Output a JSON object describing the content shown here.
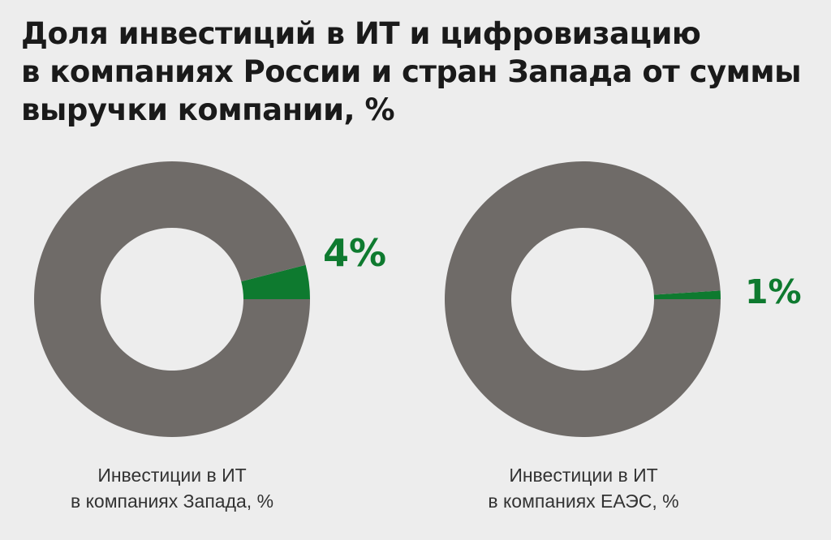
{
  "title": {
    "line1": "Доля инвестиций в ИТ и цифровизацию",
    "line2": "в компаниях России и стран Запада от суммы",
    "line3": "выручки компании, %"
  },
  "colors": {
    "background": "#ededed",
    "remainder": "#6f6b68",
    "highlight": "#0e7a2f",
    "title": "#1a1a1a",
    "caption": "#333333"
  },
  "chart_data": [
    {
      "type": "pie",
      "style": "donut",
      "slices": [
        {
          "name": "Инвестиции в ИТ",
          "value": 4,
          "color": "#0e7a2f"
        },
        {
          "name": "",
          "value": 96,
          "color": "#6f6b68"
        }
      ],
      "value_label": "4%",
      "caption_line1": "Инвестиции в ИТ",
      "caption_line2": "в компаниях Запада, %"
    },
    {
      "type": "pie",
      "style": "donut",
      "slices": [
        {
          "name": "Инвестиции в ИТ",
          "value": 1,
          "color": "#0e7a2f"
        },
        {
          "name": "",
          "value": 99,
          "color": "#6f6b68"
        }
      ],
      "value_label": "1%",
      "caption_line1": "Инвестиции в ИТ",
      "caption_line2": "в компаниях ЕАЭС, %"
    }
  ]
}
